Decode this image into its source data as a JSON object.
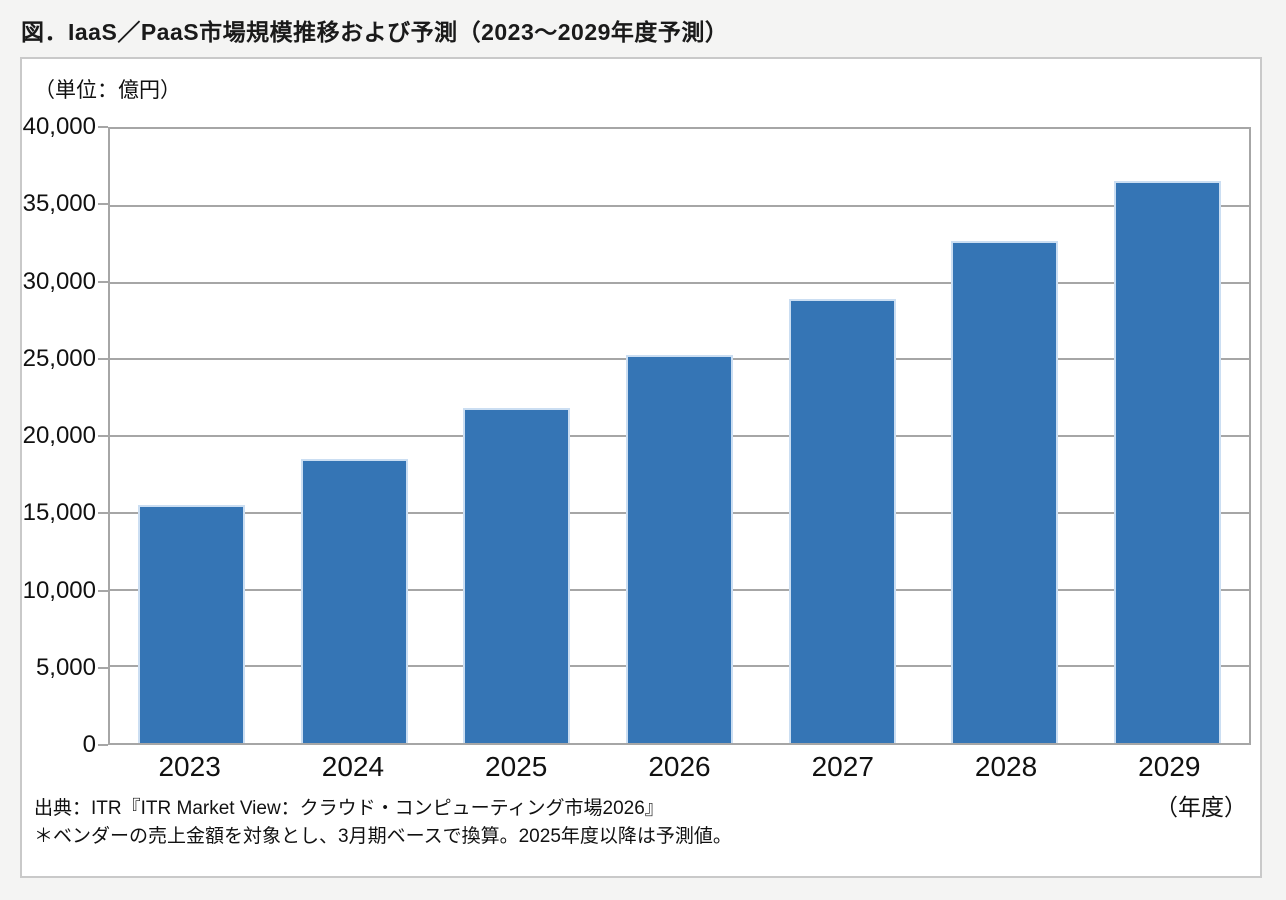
{
  "page": {
    "title": "図．IaaS／PaaS市場規模推移および予測（2023～2029年度予測）",
    "unit_label": "（単位：億円）",
    "x_axis_unit_label": "（年度）",
    "source_note": "出典：ITR『ITR Market View：クラウド・コンピューティング市場2026』",
    "footnote": "＊ベンダーの売上金額を対象とし、3月期ベースで換算。2025年度以降は予測値。"
  },
  "colors": {
    "bar": "#3575B5",
    "bar_edge": "#CBDEF2",
    "grid": "#A6A6A6",
    "panel_border": "#C9C9C9",
    "page_bg": "#F4F4F3"
  },
  "chart_data": {
    "type": "bar",
    "title": "IaaS／PaaS市場規模推移および予測（2023～2029年度予測）",
    "categories": [
      "2023",
      "2024",
      "2025",
      "2026",
      "2027",
      "2028",
      "2029"
    ],
    "values": [
      15500,
      18500,
      21800,
      25300,
      28900,
      32700,
      36600
    ],
    "xlabel": "年度",
    "ylabel": "億円",
    "ylim": [
      0,
      40000
    ],
    "ytick_interval": 5000,
    "ytick_labels": [
      "0",
      "5,000",
      "10,000",
      "15,000",
      "20,000",
      "25,000",
      "30,000",
      "35,000",
      "40,000"
    ],
    "grid": true,
    "legend_position": "none",
    "bar_color": "#3575B5"
  }
}
